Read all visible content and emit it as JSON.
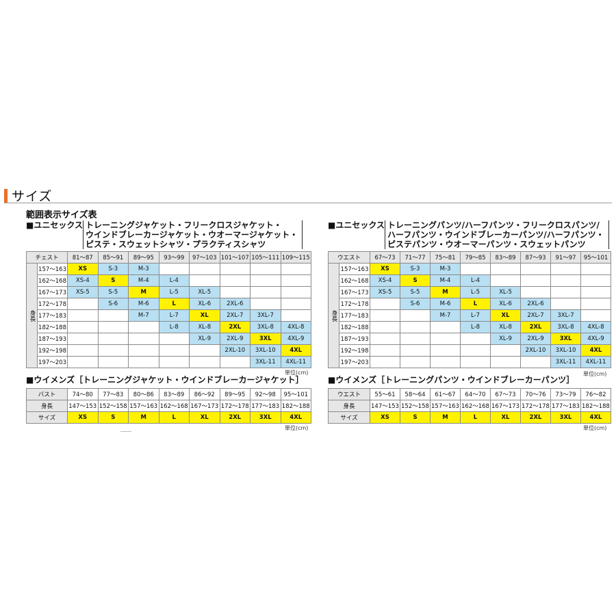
{
  "section_title": "サイズ",
  "subtitle": "範囲表示サイズ表",
  "left": {
    "unisex_prefix": "■ユニセックス",
    "unisex_items": [
      "トレーニングジャケット・フリークロスジャケット・",
      "ウインドブレーカージャケット・ウオーマージャケット・",
      "ピステ・スウェットシャツ・プラクティスシャツ"
    ],
    "unisex_table": {
      "corner": "チェスト",
      "vertical_label": "身長",
      "columns": [
        "81～87",
        "85～91",
        "89～95",
        "93～99",
        "97～103",
        "101～107",
        "105～111",
        "109～115"
      ],
      "rows": [
        {
          "h": "157～163",
          "cells": [
            "XS",
            "S-3",
            "M-3",
            "",
            "",
            "",
            "",
            ""
          ]
        },
        {
          "h": "162～168",
          "cells": [
            "XS-4",
            "S",
            "M-4",
            "L-4",
            "",
            "",
            "",
            ""
          ]
        },
        {
          "h": "167～173",
          "cells": [
            "XS-5",
            "S-5",
            "M",
            "L-5",
            "XL-5",
            "",
            "",
            ""
          ]
        },
        {
          "h": "172～178",
          "cells": [
            "",
            "S-6",
            "M-6",
            "L",
            "XL-6",
            "2XL-6",
            "",
            ""
          ]
        },
        {
          "h": "177～183",
          "cells": [
            "",
            "",
            "M-7",
            "L-7",
            "XL",
            "2XL-7",
            "3XL-7",
            ""
          ]
        },
        {
          "h": "182～188",
          "cells": [
            "",
            "",
            "",
            "L-8",
            "XL-8",
            "2XL",
            "3XL-8",
            "4XL-8"
          ]
        },
        {
          "h": "187～193",
          "cells": [
            "",
            "",
            "",
            "",
            "XL-9",
            "2XL-9",
            "3XL",
            "4XL-9"
          ]
        },
        {
          "h": "192～198",
          "cells": [
            "",
            "",
            "",
            "",
            "",
            "2XL-10",
            "3XL-10",
            "4XL"
          ]
        },
        {
          "h": "197～203",
          "cells": [
            "",
            "",
            "",
            "",
            "",
            "",
            "3XL-11",
            "4XL-11"
          ]
        }
      ]
    },
    "unit": "単位(cm)",
    "womens_heading": "■ウイメンズ［トレーニングジャケット・ウインドブレーカージャケット］",
    "womens_table": {
      "rows": [
        {
          "label": "バスト",
          "cells": [
            "74～80",
            "77～83",
            "80～86",
            "83～89",
            "86～92",
            "89～95",
            "92～98",
            "95～101"
          ]
        },
        {
          "label": "身長",
          "cells": [
            "147～153",
            "152～158",
            "157～163",
            "162～168",
            "167～173",
            "172～178",
            "177～183",
            "182～188"
          ]
        },
        {
          "label": "サイズ",
          "cells": [
            "XS",
            "S",
            "M",
            "L",
            "XL",
            "2XL",
            "3XL",
            "4XL"
          ]
        }
      ]
    },
    "unit2": "単位(cm)"
  },
  "right": {
    "unisex_prefix": "■ユニセックス",
    "unisex_items": [
      "トレーニングパンツ/ハーフパンツ・フリークロスパンツ/",
      "ハーフパンツ・ウインドブレーカーパンツ/ハーフパンツ・",
      "ピステパンツ・ウオーマーパンツ・スウェットパンツ"
    ],
    "unisex_table": {
      "corner": "ウエスト",
      "vertical_label": "身長",
      "columns": [
        "67～73",
        "71～77",
        "75～81",
        "79～85",
        "83～89",
        "87～93",
        "91～97",
        "95～101"
      ],
      "rows": [
        {
          "h": "157～163",
          "cells": [
            "XS",
            "S-3",
            "M-3",
            "",
            "",
            "",
            "",
            ""
          ]
        },
        {
          "h": "162～168",
          "cells": [
            "XS-4",
            "S",
            "M-4",
            "L-4",
            "",
            "",
            "",
            ""
          ]
        },
        {
          "h": "167～173",
          "cells": [
            "XS-5",
            "S-5",
            "M",
            "L-5",
            "XL-5",
            "",
            "",
            ""
          ]
        },
        {
          "h": "172～178",
          "cells": [
            "",
            "S-6",
            "M-6",
            "L",
            "XL-6",
            "2XL-6",
            "",
            ""
          ]
        },
        {
          "h": "177～183",
          "cells": [
            "",
            "",
            "M-7",
            "L-7",
            "XL",
            "2XL-7",
            "3XL-7",
            ""
          ]
        },
        {
          "h": "182～188",
          "cells": [
            "",
            "",
            "",
            "L-8",
            "XL-8",
            "2XL",
            "3XL-8",
            "4XL-8"
          ]
        },
        {
          "h": "187～193",
          "cells": [
            "",
            "",
            "",
            "",
            "XL-9",
            "2XL-9",
            "3XL",
            "4XL-9"
          ]
        },
        {
          "h": "192～198",
          "cells": [
            "",
            "",
            "",
            "",
            "",
            "2XL-10",
            "3XL-10",
            "4XL"
          ]
        },
        {
          "h": "197～203",
          "cells": [
            "",
            "",
            "",
            "",
            "",
            "",
            "3XL-11",
            "4XL-11"
          ]
        }
      ]
    },
    "unit": "単位(cm)",
    "womens_heading": "■ウイメンズ［トレーニングパンツ・ウインドブレーカーパンツ］",
    "womens_table": {
      "rows": [
        {
          "label": "ウエスト",
          "cells": [
            "55～61",
            "58～64",
            "61～67",
            "64～70",
            "67～73",
            "70～76",
            "73～79",
            "76～82"
          ]
        },
        {
          "label": "身長",
          "cells": [
            "147～153",
            "152～158",
            "157～163",
            "162～168",
            "167～173",
            "172～178",
            "177～183",
            "182～188"
          ]
        },
        {
          "label": "サイズ",
          "cells": [
            "XS",
            "S",
            "M",
            "L",
            "XL",
            "2XL",
            "3XL",
            "4XL"
          ]
        }
      ]
    },
    "unit2": "単位(cm)"
  },
  "colors": {
    "accent": "#e8702a",
    "highlight": "#fff200",
    "range_cell": "#b8dff2",
    "header_bg": "#e6e6e6"
  }
}
